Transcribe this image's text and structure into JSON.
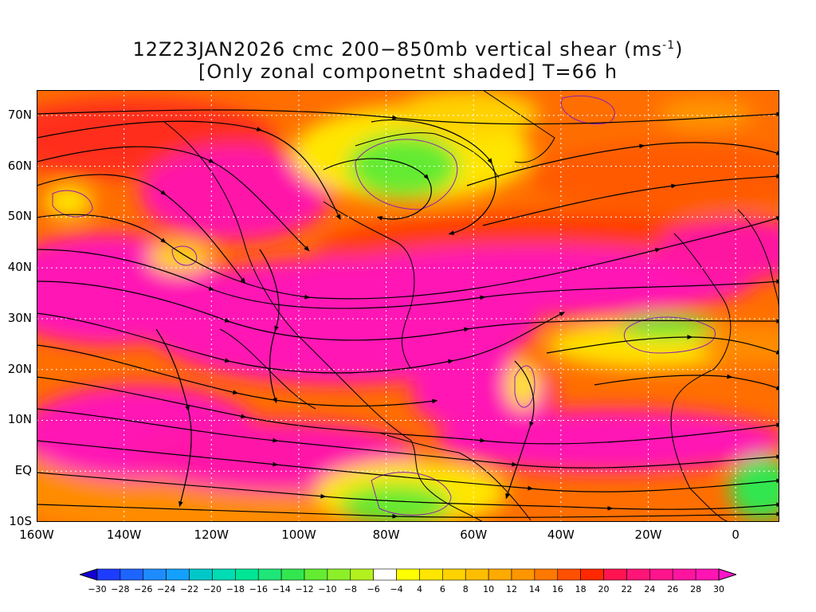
{
  "title": {
    "line1_prefix": "12Z23JAN2026 cmc 200−850mb vertical shear (ms",
    "line1_sup": "-1",
    "line1_suffix": ")",
    "line2": "[Only zonal componetnt shaded] T=66 h"
  },
  "map": {
    "lon_range": [
      -160,
      10
    ],
    "lat_range": [
      -10,
      75
    ],
    "lat_labels": [
      "70N",
      "60N",
      "50N",
      "40N",
      "30N",
      "20N",
      "10N",
      "EQ",
      "10S"
    ],
    "lat_values": [
      70,
      60,
      50,
      40,
      30,
      20,
      10,
      0,
      -10
    ],
    "lon_labels": [
      "160W",
      "140W",
      "120W",
      "100W",
      "80W",
      "60W",
      "40W",
      "20W",
      "0"
    ],
    "lon_values": [
      -160,
      -140,
      -120,
      -100,
      -80,
      -60,
      -40,
      -20,
      0
    ],
    "gridlines": "dotted"
  },
  "colorbar": {
    "labels": [
      "-30",
      "-28",
      "-26",
      "-24",
      "-22",
      "-20",
      "-18",
      "-16",
      "-14",
      "-12",
      "-10",
      "-8",
      "-6",
      "-4",
      "4",
      "6",
      "8",
      "10",
      "12",
      "14",
      "16",
      "18",
      "20",
      "22",
      "24",
      "26",
      "28",
      "30"
    ],
    "colors": [
      "#1400d2",
      "#1e3cff",
      "#1e64ff",
      "#1e8cff",
      "#14a0ff",
      "#00c8c8",
      "#00dcb4",
      "#00e696",
      "#1ee678",
      "#32e650",
      "#64eb32",
      "#8cf028",
      "#b4f01e",
      "#ffffff",
      "#ffff00",
      "#ffe600",
      "#ffd200",
      "#ffbe00",
      "#ffaa00",
      "#ff9600",
      "#ff7800",
      "#ff5000",
      "#ff2800",
      "#ff1450",
      "#ff1478",
      "#ff148c",
      "#ff14a0",
      "#ff14b4",
      "#ff14c8"
    ],
    "extend": "both"
  }
}
